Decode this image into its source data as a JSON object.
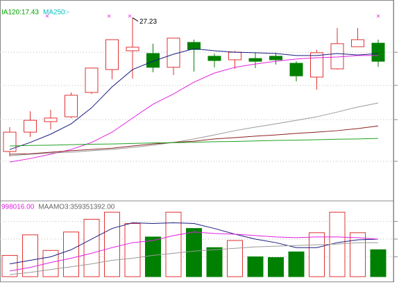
{
  "chart_data": [
    {
      "type": "candlestick",
      "legend": [
        {
          "text": "IA120:17.43",
          "color": "#00a000"
        },
        {
          "text": "MA250:-",
          "color": "#00c0c0"
        }
      ],
      "annotation": {
        "text": "27.23",
        "index": 6
      },
      "up_color": "#e03030",
      "down_color": "#008000",
      "open": [
        21.91,
        22.68,
        23.1,
        23.29,
        24.26,
        25.17,
        25.92,
        25.81,
        25.26,
        26.25,
        25.7,
        25.56,
        25.61,
        25.7,
        25.42,
        24.87,
        25.2,
        26.08,
        26.22
      ],
      "close": [
        22.68,
        23.15,
        23.24,
        24.15,
        25.23,
        26.36,
        26.06,
        25.26,
        26.42,
        25.97,
        25.53,
        25.86,
        25.5,
        25.56,
        24.92,
        25.84,
        26.2,
        26.36,
        25.5
      ],
      "high": [
        22.88,
        23.51,
        23.57,
        24.26,
        25.25,
        26.36,
        27.23,
        26.2,
        26.42,
        26.36,
        25.81,
        25.92,
        25.84,
        25.84,
        25.5,
        25.95,
        26.83,
        26.83,
        26.36
      ],
      "low": [
        21.71,
        22.49,
        22.79,
        23.24,
        24.2,
        24.78,
        24.81,
        25.06,
        24.95,
        25.09,
        25.26,
        25.2,
        25.23,
        25.37,
        24.7,
        24.37,
        25.17,
        26.08,
        25.28
      ],
      "lines": [
        {
          "color": "#1a1a80",
          "values": [
            21.99,
            22.27,
            22.6,
            23.01,
            23.65,
            24.48,
            25.17,
            25.5,
            25.78,
            26.0,
            25.92,
            25.86,
            25.84,
            25.81,
            25.73,
            25.73,
            25.81,
            25.75,
            25.81
          ]
        },
        {
          "color": "#e020e0",
          "values": [
            21.49,
            21.63,
            21.8,
            21.99,
            22.27,
            22.68,
            23.24,
            23.79,
            24.2,
            24.67,
            25.03,
            25.26,
            25.39,
            25.5,
            25.59,
            25.64,
            25.67,
            25.73,
            25.73
          ]
        },
        {
          "color": "#999999",
          "values": [
            21.74,
            21.8,
            21.85,
            21.88,
            21.94,
            21.99,
            22.07,
            22.16,
            22.27,
            22.41,
            22.57,
            22.74,
            22.88,
            23.01,
            23.15,
            23.29,
            23.48,
            23.68,
            23.84
          ]
        },
        {
          "color": "#8b2020",
          "values": [
            21.8,
            21.82,
            21.88,
            21.94,
            21.99,
            22.04,
            22.13,
            22.21,
            22.27,
            22.32,
            22.41,
            22.46,
            22.52,
            22.57,
            22.63,
            22.68,
            22.74,
            22.82,
            22.93
          ]
        },
        {
          "color": "#20a020",
          "values": [
            22.13,
            22.15,
            22.16,
            22.18,
            22.2,
            22.21,
            22.23,
            22.25,
            22.26,
            22.28,
            22.3,
            22.31,
            22.33,
            22.35,
            22.36,
            22.38,
            22.4,
            22.41,
            22.43
          ]
        }
      ],
      "ylim": [
        20,
        27.8
      ],
      "ygrid": [
        25.86,
        24.54,
        23.18,
        21.52
      ]
    },
    {
      "type": "volume",
      "legend": [
        {
          "text": "998016.00",
          "color": "#e020e0"
        },
        {
          "text": "MAAMO3:359351392.00",
          "color": "#666666"
        }
      ],
      "values": [
        30,
        59,
        37,
        63,
        81,
        91,
        75,
        56,
        91,
        68,
        41,
        51,
        28,
        27,
        35,
        62,
        91,
        62,
        38
      ],
      "up": [
        true,
        true,
        true,
        true,
        true,
        true,
        true,
        false,
        true,
        false,
        false,
        true,
        false,
        false,
        false,
        true,
        true,
        true,
        false
      ],
      "up_color": "#e03030",
      "down_color": "#008000",
      "lines": [
        {
          "color": "#1a1a80",
          "values": [
            18,
            23,
            28,
            38,
            53,
            68,
            76,
            75,
            76,
            75,
            68,
            60,
            53,
            48,
            41,
            41,
            48,
            52,
            53
          ]
        },
        {
          "color": "#e020e0",
          "values": [
            8,
            13,
            20,
            26,
            33,
            41,
            48,
            51,
            58,
            63,
            61,
            60,
            58,
            56,
            55,
            56,
            56,
            55,
            53
          ]
        },
        {
          "color": "#999999",
          "values": [
            3,
            6,
            10,
            14,
            18,
            23,
            26,
            30,
            33,
            36,
            38,
            40,
            42,
            43,
            44,
            45,
            46,
            48,
            48
          ]
        }
      ],
      "ylim": [
        0,
        103
      ],
      "ygrid": [
        78,
        53,
        28
      ]
    }
  ]
}
